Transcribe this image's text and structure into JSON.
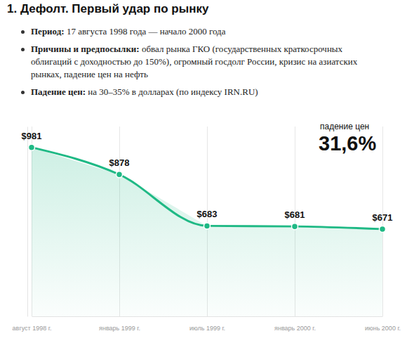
{
  "chart_data": {
    "type": "line",
    "title": "1. Дефолт. Первый удар по рынку",
    "notes": [
      {
        "label": "Период:",
        "text": "17 августа 1998 года — начало 2000 года"
      },
      {
        "label": "Причины и предпосылки:",
        "text": "обвал рынка ГКО (государственных краткосрочных облигаций с доходностью до 150%), огромный госдолг России, кризис на азиатских рынках, падение цен на нефть"
      },
      {
        "label": "Падение цен:",
        "text": "на 30–35% в долларах (по индексу IRN.RU)"
      }
    ],
    "annotations": [
      "падение цен",
      "31,6%"
    ],
    "categories": [
      "август 1998 г.",
      "январь 1999 г.",
      "июль 1999 г.",
      "январь 2000 г.",
      "июнь 2000 г."
    ],
    "values": [
      981,
      878,
      683,
      681,
      671
    ],
    "value_labels": [
      "$981",
      "$878",
      "$683",
      "$681",
      "$671"
    ],
    "data_labels": true,
    "color": "#1fb985",
    "ylim": [
      340,
      1060
    ],
    "grid": true,
    "tick_labels": "x"
  }
}
